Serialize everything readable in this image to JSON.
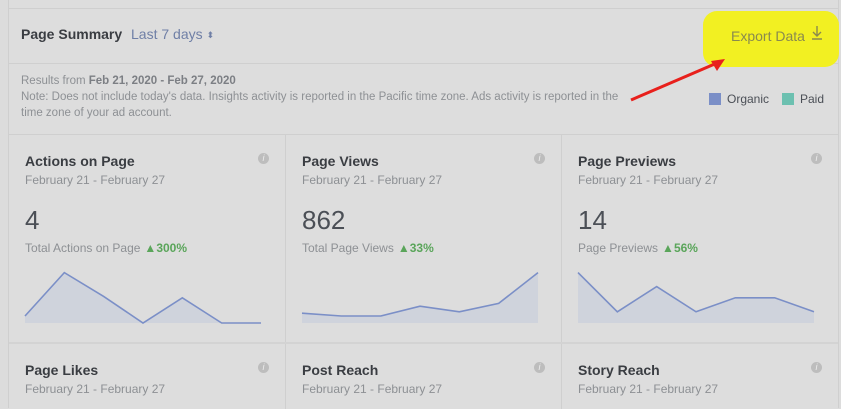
{
  "header": {
    "title": "Page Summary",
    "range_label": "Last 7 days",
    "range_caret": "⬍",
    "export_label": "Export Data",
    "export_icon": "↓"
  },
  "notes": {
    "prefix": "Results from ",
    "dates": "Feb 21, 2020 - Feb 27, 2020",
    "line2": "Note: Does not include today's data. Insights activity is reported in the Pacific time zone. Ads activity is reported in the",
    "line3": "time zone of your ad account."
  },
  "legend": {
    "organic": "Organic",
    "paid": "Paid",
    "organic_color": "#7b8fc7",
    "paid_color": "#6cc0b0"
  },
  "cards": [
    {
      "title": "Actions on Page",
      "date": "February 21 - February 27",
      "value": "4",
      "label": "Total Actions on Page",
      "change": "300%",
      "spark": [
        0.5,
        3.6,
        1.9,
        0.0,
        1.8,
        0.0,
        0.0
      ]
    },
    {
      "title": "Page Views",
      "date": "February 21 - February 27",
      "value": "862",
      "label": "Total Page Views",
      "change": "33%",
      "spark": [
        0.7,
        0.5,
        0.5,
        1.2,
        0.8,
        1.4,
        3.6
      ]
    },
    {
      "title": "Page Previews",
      "date": "February 21 - February 27",
      "value": "14",
      "label": "Page Previews",
      "change": "56%",
      "spark": [
        3.6,
        0.8,
        2.6,
        0.8,
        1.8,
        1.8,
        0.8
      ]
    },
    {
      "title": "Page Likes",
      "date": "February 21 - February 27"
    },
    {
      "title": "Post Reach",
      "date": "February 21 - February 27"
    },
    {
      "title": "Story Reach",
      "date": "February 21 - February 27"
    }
  ]
}
